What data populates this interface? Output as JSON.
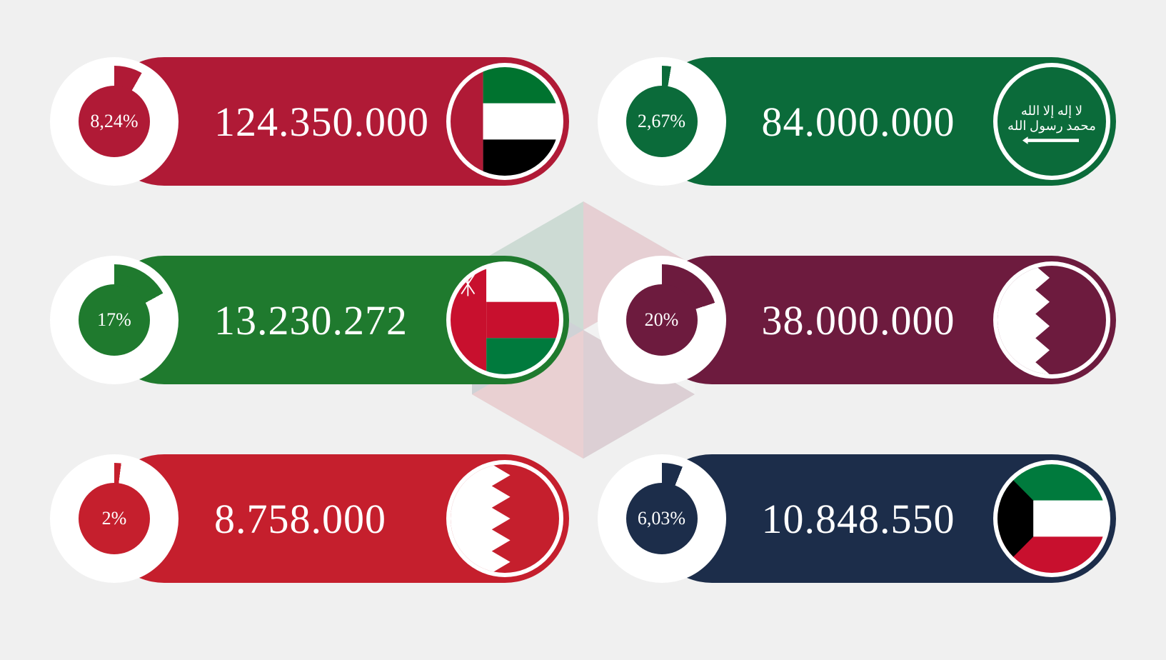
{
  "type": "infographic",
  "background_color": "#f0f0f0",
  "value_fontsize": 58,
  "pct_fontsize": 26,
  "ring_thickness": 28,
  "countries": [
    {
      "id": "uae",
      "pill_color": "#b01a36",
      "pct_label": "8,24%",
      "pct_value": 8.24,
      "pct_inner_color": "#b01a36",
      "ring_remainder_color": "#ffffff",
      "value": "124.350.000",
      "flag": "uae"
    },
    {
      "id": "ksa",
      "pill_color": "#0b6b3a",
      "pct_label": "2,67%",
      "pct_value": 2.67,
      "pct_inner_color": "#0b6b3a",
      "ring_remainder_color": "#ffffff",
      "value": "84.000.000",
      "flag": "ksa"
    },
    {
      "id": "oman",
      "pill_color": "#1f7a2e",
      "pct_label": "17%",
      "pct_value": 17,
      "pct_inner_color": "#1f7a2e",
      "ring_remainder_color": "#ffffff",
      "value": "13.230.272",
      "flag": "oman"
    },
    {
      "id": "qatar",
      "pill_color": "#6d1b3e",
      "pct_label": "20%",
      "pct_value": 20,
      "pct_inner_color": "#6d1b3e",
      "ring_remainder_color": "#ffffff",
      "value": "38.000.000",
      "flag": "qatar"
    },
    {
      "id": "bahrain",
      "pill_color": "#c51f2d",
      "pct_label": "2%",
      "pct_value": 2,
      "pct_inner_color": "#c51f2d",
      "ring_remainder_color": "#ffffff",
      "value": "8.758.000",
      "flag": "bahrain"
    },
    {
      "id": "kuwait",
      "pill_color": "#1c2d4a",
      "pct_label": "6,03%",
      "pct_value": 6.03,
      "pct_inner_color": "#1c2d4a",
      "ring_remainder_color": "#ffffff",
      "value": "10.848.550",
      "flag": "kuwait"
    }
  ],
  "flag_colors": {
    "uae": {
      "red": "#b01a36",
      "green": "#00732f",
      "white": "#ffffff",
      "black": "#000000"
    },
    "ksa": {
      "green": "#0b6b3a",
      "white": "#ffffff"
    },
    "oman": {
      "red": "#c8102e",
      "white": "#ffffff",
      "green": "#007a3d"
    },
    "qatar": {
      "maroon": "#6d1b3e",
      "white": "#ffffff"
    },
    "bahrain": {
      "red": "#c51f2d",
      "white": "#ffffff"
    },
    "kuwait": {
      "green": "#007a3d",
      "white": "#ffffff",
      "red": "#c8102e",
      "black": "#000000"
    }
  }
}
